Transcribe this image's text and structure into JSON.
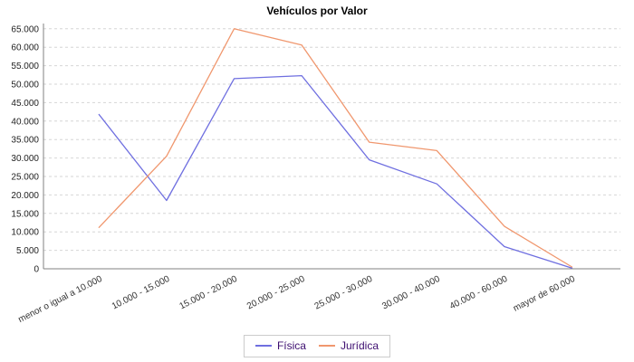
{
  "chart_data": {
    "type": "line",
    "title": "Vehículos por Valor",
    "categories": [
      "menor o igual a 10.000",
      "10.000 - 15.000",
      "15.000 - 20.000",
      "20.000 - 25.000",
      "25.000 - 30.000",
      "30.000 - 40.000",
      "40.000 - 60.000",
      "mayor de 60.000"
    ],
    "series": [
      {
        "name": "Física",
        "color": "#6f6fe0",
        "values": [
          41800,
          18500,
          51500,
          52300,
          29500,
          23000,
          6000,
          200
        ]
      },
      {
        "name": "Jurídica",
        "color": "#f0976e",
        "values": [
          11200,
          30500,
          65000,
          60600,
          34300,
          32000,
          11500,
          500
        ]
      }
    ],
    "xlabel": "",
    "ylabel": "",
    "ylim": [
      0,
      65000
    ],
    "y_tick_step": 5000,
    "y_ticks": [
      "0",
      "5.000",
      "10.000",
      "15.000",
      "20.000",
      "25.000",
      "30.000",
      "35.000",
      "40.000",
      "45.000",
      "50.000",
      "55.000",
      "60.000",
      "65.000"
    ],
    "grid": "horizontal-dashed",
    "legend_position": "bottom-center",
    "colors": {
      "axis": "#808080",
      "gridline": "#d6d6d6",
      "tick_text": "#222222",
      "category_text": "#333333",
      "legend_text": "#3d0e70",
      "title_text": "#000000",
      "background": "#ffffff"
    }
  }
}
